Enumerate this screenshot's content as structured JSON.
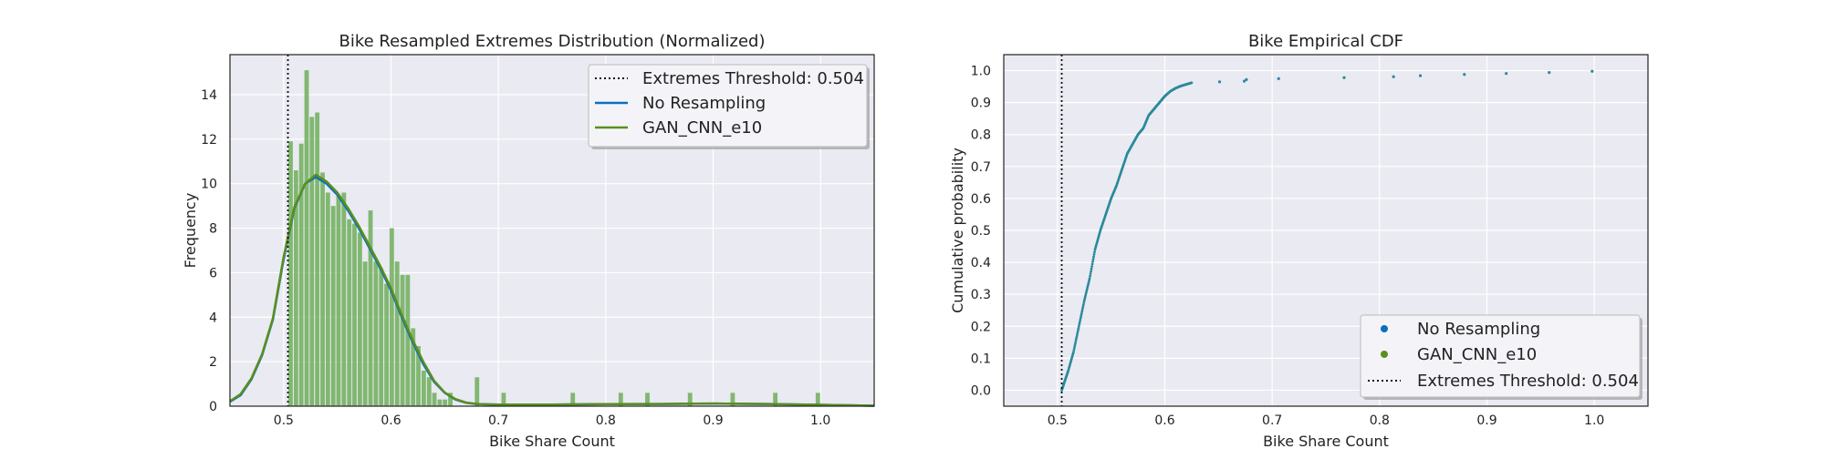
{
  "colors": {
    "background": "#ffffff",
    "plot_bg": "#eaeaf2",
    "grid": "#ffffff",
    "no_resampling": "#0a6fc2",
    "gan": "#5a8f1e",
    "gan_bar": "#6fae5b",
    "threshold": "#111111",
    "cdf_points": "#2a8a9a"
  },
  "chart_data": [
    {
      "type": "bar",
      "title": "Bike Resampled Extremes Distribution (Normalized)",
      "xlabel": "Bike Share Count",
      "ylabel": "Frequency",
      "xlim": [
        0.45,
        1.05
      ],
      "ylim": [
        0,
        15.8
      ],
      "xticks": [
        "0.5",
        "0.6",
        "0.7",
        "0.8",
        "0.9",
        "1.0"
      ],
      "xtick_values": [
        0.5,
        0.6,
        0.7,
        0.8,
        0.9,
        1.0
      ],
      "yticks": [
        "0",
        "2",
        "4",
        "6",
        "8",
        "10",
        "12",
        "14"
      ],
      "ytick_values": [
        0,
        2,
        4,
        6,
        8,
        10,
        12,
        14
      ],
      "grid": true,
      "legend_position": "top-right",
      "threshold": 0.504,
      "bin_width": 0.00496,
      "hist_x": [
        0.5065,
        0.5115,
        0.5164,
        0.5214,
        0.5263,
        0.5313,
        0.5363,
        0.5412,
        0.5462,
        0.5511,
        0.5561,
        0.5611,
        0.566,
        0.571,
        0.5759,
        0.5809,
        0.5859,
        0.5908,
        0.5958,
        0.6007,
        0.6057,
        0.6107,
        0.6156,
        0.6206,
        0.6255,
        0.6305,
        0.6355,
        0.6404,
        0.6454,
        0.6503,
        0.6553,
        0.6801,
        0.7049,
        0.7693,
        0.814,
        0.8388,
        0.8785,
        0.9182,
        0.9579,
        0.9976
      ],
      "hist_values": [
        11.9,
        10.6,
        11.8,
        15.1,
        13.0,
        13.2,
        10.5,
        9.6,
        9.0,
        9.5,
        9.6,
        8.4,
        8.2,
        7.8,
        6.5,
        8.8,
        6.5,
        6.2,
        5.5,
        8.0,
        6.5,
        5.9,
        5.9,
        3.5,
        2.7,
        1.6,
        1.3,
        0.6,
        0.3,
        0.3,
        0.6,
        1.3,
        0.6,
        0.6,
        0.6,
        0.6,
        0.6,
        0.6,
        0.6,
        0.6
      ],
      "kde_x": [
        0.45,
        0.46,
        0.47,
        0.48,
        0.49,
        0.5,
        0.51,
        0.52,
        0.53,
        0.54,
        0.55,
        0.56,
        0.57,
        0.58,
        0.59,
        0.6,
        0.61,
        0.62,
        0.63,
        0.64,
        0.65,
        0.66,
        0.67,
        0.68,
        0.69,
        0.7,
        0.75,
        0.8,
        0.85,
        0.9,
        0.95,
        1.0,
        1.05
      ],
      "kde_no_resampling": [
        0.2,
        0.5,
        1.2,
        2.3,
        3.9,
        6.6,
        8.9,
        10.0,
        10.3,
        10.0,
        9.5,
        8.8,
        8.0,
        7.1,
        6.2,
        5.2,
        4.0,
        2.9,
        1.9,
        1.1,
        0.6,
        0.3,
        0.15,
        0.1,
        0.08,
        0.07,
        0.07,
        0.09,
        0.1,
        0.12,
        0.1,
        0.06,
        0.02
      ],
      "kde_gan": [
        0.22,
        0.55,
        1.25,
        2.35,
        3.95,
        6.7,
        8.95,
        10.0,
        10.4,
        10.1,
        9.6,
        8.9,
        8.1,
        7.2,
        6.3,
        5.3,
        4.1,
        3.0,
        2.0,
        1.15,
        0.62,
        0.32,
        0.16,
        0.1,
        0.08,
        0.07,
        0.07,
        0.09,
        0.1,
        0.12,
        0.1,
        0.06,
        0.02
      ],
      "series": [
        {
          "name": "No Resampling",
          "kind": "line"
        },
        {
          "name": "GAN_CNN_e10",
          "kind": "line+bar"
        }
      ],
      "legend": [
        "Extremes Threshold: 0.504",
        "No Resampling",
        "GAN_CNN_e10"
      ]
    },
    {
      "type": "scatter",
      "title": "Bike Empirical CDF",
      "xlabel": "Bike Share Count",
      "ylabel": "Cumulative probability",
      "xlim": [
        0.45,
        1.05
      ],
      "ylim": [
        -0.05,
        1.05
      ],
      "xticks": [
        "0.5",
        "0.6",
        "0.7",
        "0.8",
        "0.9",
        "1.0"
      ],
      "xtick_values": [
        0.5,
        0.6,
        0.7,
        0.8,
        0.9,
        1.0
      ],
      "yticks": [
        "0.0",
        "0.1",
        "0.2",
        "0.3",
        "0.4",
        "0.5",
        "0.6",
        "0.7",
        "0.8",
        "0.9",
        "1.0"
      ],
      "ytick_values": [
        0.0,
        0.1,
        0.2,
        0.3,
        0.4,
        0.5,
        0.6,
        0.7,
        0.8,
        0.9,
        1.0
      ],
      "grid": true,
      "legend_position": "bottom-right",
      "threshold": 0.504,
      "curve_x": [
        0.504,
        0.507,
        0.51,
        0.515,
        0.52,
        0.525,
        0.53,
        0.535,
        0.54,
        0.545,
        0.55,
        0.555,
        0.56,
        0.565,
        0.57,
        0.575,
        0.58,
        0.585,
        0.59,
        0.595,
        0.6,
        0.605,
        0.61,
        0.615,
        0.62,
        0.625
      ],
      "curve_y": [
        0.0,
        0.03,
        0.06,
        0.12,
        0.2,
        0.28,
        0.35,
        0.44,
        0.5,
        0.55,
        0.6,
        0.64,
        0.69,
        0.74,
        0.77,
        0.8,
        0.82,
        0.86,
        0.88,
        0.9,
        0.92,
        0.935,
        0.945,
        0.952,
        0.957,
        0.962
      ],
      "tail_x": [
        0.651,
        0.674,
        0.676,
        0.706,
        0.767,
        0.813,
        0.838,
        0.879,
        0.918,
        0.958,
        0.998
      ],
      "tail_y": [
        0.965,
        0.967,
        0.972,
        0.975,
        0.978,
        0.981,
        0.984,
        0.988,
        0.991,
        0.994,
        0.998
      ],
      "legend": [
        "No Resampling",
        "GAN_CNN_e10",
        "Extremes Threshold: 0.504"
      ]
    }
  ]
}
